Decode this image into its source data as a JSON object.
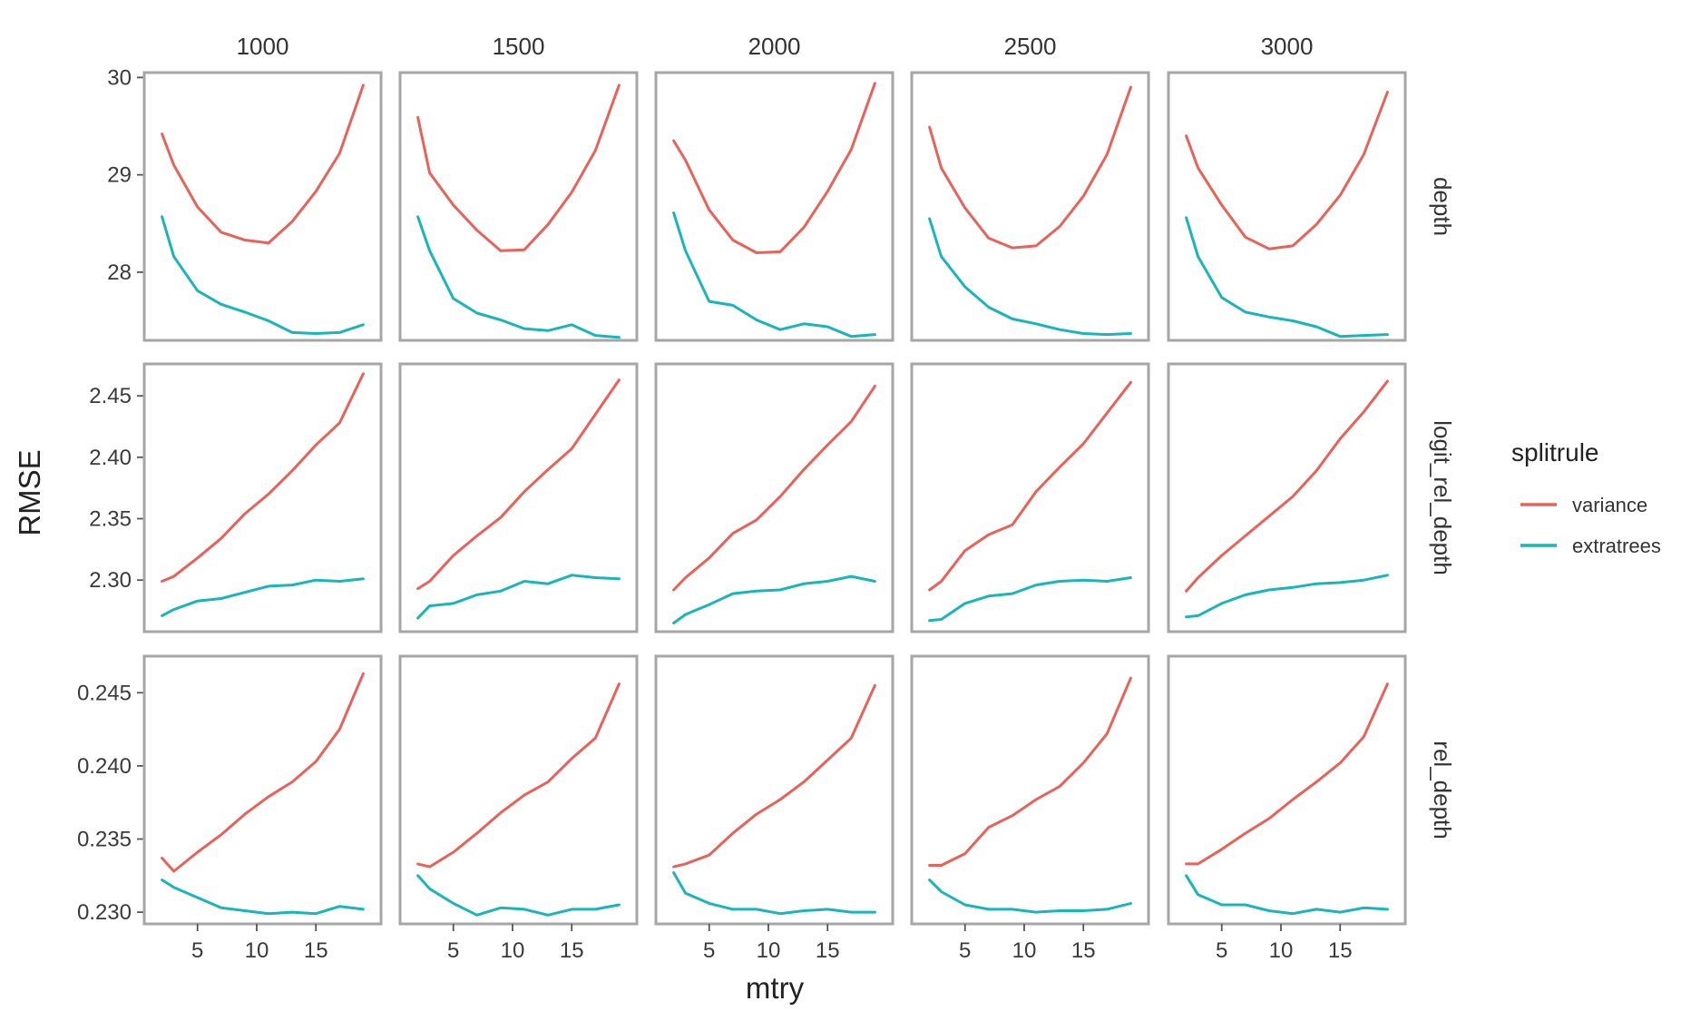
{
  "chart_data": {
    "type": "line",
    "xlabel": "mtry",
    "ylabel": "RMSE",
    "legend": {
      "title": "splitrule",
      "position": "right",
      "entries": [
        {
          "name": "variance",
          "color": "#E8625A"
        },
        {
          "name": "extratrees",
          "color": "#19B5B8"
        }
      ]
    },
    "columns": [
      "1000",
      "1500",
      "2000",
      "2500",
      "3000"
    ],
    "rows": [
      "depth",
      "logit_rel_depth",
      "rel_depth"
    ],
    "x": [
      2,
      3,
      5,
      7,
      9,
      11,
      13,
      15,
      17,
      19
    ],
    "xlim": [
      0.5,
      20.5
    ],
    "xticks": [
      5,
      10,
      15
    ],
    "row_scales": [
      {
        "ylim": [
          27.3,
          30.05
        ],
        "yticks": [
          28,
          29,
          30
        ],
        "ytick_labels": [
          "28",
          "29",
          "30"
        ]
      },
      {
        "ylim": [
          2.258,
          2.476
        ],
        "yticks": [
          2.3,
          2.35,
          2.4,
          2.45
        ],
        "ytick_labels": [
          "2.30",
          "2.35",
          "2.40",
          "2.45"
        ]
      },
      {
        "ylim": [
          0.2292,
          0.2475
        ],
        "yticks": [
          0.23,
          0.235,
          0.24,
          0.245
        ],
        "ytick_labels": [
          "0.230",
          "0.235",
          "0.240",
          "0.245"
        ]
      }
    ],
    "panels": [
      [
        {
          "variance": [
            29.42,
            29.1,
            28.67,
            28.41,
            28.33,
            28.3,
            28.52,
            28.83,
            29.22,
            29.92
          ],
          "extratrees": [
            28.57,
            28.16,
            27.81,
            27.67,
            27.59,
            27.5,
            27.38,
            27.37,
            27.38,
            27.46
          ]
        },
        {
          "variance": [
            29.59,
            29.02,
            28.69,
            28.43,
            28.22,
            28.23,
            28.49,
            28.82,
            29.25,
            29.92
          ],
          "extratrees": [
            28.57,
            28.22,
            27.73,
            27.58,
            27.51,
            27.42,
            27.4,
            27.46,
            27.35,
            27.33
          ]
        },
        {
          "variance": [
            29.35,
            29.15,
            28.64,
            28.33,
            28.2,
            28.21,
            28.46,
            28.83,
            29.26,
            29.94
          ],
          "extratrees": [
            28.61,
            28.22,
            27.7,
            27.66,
            27.51,
            27.41,
            27.47,
            27.44,
            27.34,
            27.36
          ]
        },
        {
          "variance": [
            29.49,
            29.07,
            28.66,
            28.35,
            28.25,
            28.27,
            28.47,
            28.78,
            29.21,
            29.9
          ],
          "extratrees": [
            28.55,
            28.16,
            27.85,
            27.64,
            27.52,
            27.47,
            27.41,
            27.37,
            27.36,
            27.37
          ]
        },
        {
          "variance": [
            29.4,
            29.07,
            28.69,
            28.36,
            28.24,
            28.27,
            28.49,
            28.79,
            29.21,
            29.85
          ],
          "extratrees": [
            28.56,
            28.16,
            27.74,
            27.59,
            27.54,
            27.5,
            27.44,
            27.34,
            27.35,
            27.36
          ]
        }
      ],
      [
        {
          "variance": [
            2.299,
            2.303,
            2.318,
            2.334,
            2.354,
            2.37,
            2.389,
            2.41,
            2.428,
            2.468
          ],
          "extratrees": [
            2.271,
            2.276,
            2.283,
            2.285,
            2.29,
            2.295,
            2.296,
            2.3,
            2.299,
            2.301
          ]
        },
        {
          "variance": [
            2.293,
            2.299,
            2.32,
            2.336,
            2.351,
            2.372,
            2.39,
            2.407,
            2.435,
            2.463
          ],
          "extratrees": [
            2.269,
            2.279,
            2.281,
            2.288,
            2.291,
            2.299,
            2.297,
            2.304,
            2.302,
            2.301
          ]
        },
        {
          "variance": [
            2.292,
            2.302,
            2.318,
            2.338,
            2.349,
            2.368,
            2.39,
            2.41,
            2.429,
            2.458
          ],
          "extratrees": [
            2.265,
            2.272,
            2.28,
            2.289,
            2.291,
            2.292,
            2.297,
            2.299,
            2.303,
            2.299
          ]
        },
        {
          "variance": [
            2.292,
            2.299,
            2.324,
            2.337,
            2.345,
            2.372,
            2.392,
            2.411,
            2.436,
            2.461
          ],
          "extratrees": [
            2.267,
            2.268,
            2.281,
            2.287,
            2.289,
            2.296,
            2.299,
            2.3,
            2.299,
            2.302
          ]
        },
        {
          "variance": [
            2.291,
            2.302,
            2.32,
            2.336,
            2.352,
            2.368,
            2.389,
            2.415,
            2.437,
            2.462
          ],
          "extratrees": [
            2.27,
            2.271,
            2.281,
            2.288,
            2.292,
            2.294,
            2.297,
            2.298,
            2.3,
            2.304
          ]
        }
      ],
      [
        {
          "variance": [
            0.2337,
            0.2328,
            0.2341,
            0.2353,
            0.2367,
            0.2379,
            0.2389,
            0.2403,
            0.2425,
            0.2463
          ],
          "extratrees": [
            0.2322,
            0.2317,
            0.231,
            0.2303,
            0.2301,
            0.2299,
            0.23,
            0.2299,
            0.2304,
            0.2302
          ]
        },
        {
          "variance": [
            0.2333,
            0.2331,
            0.2341,
            0.2354,
            0.2368,
            0.238,
            0.2389,
            0.2405,
            0.2419,
            0.2456
          ],
          "extratrees": [
            0.2325,
            0.2316,
            0.2306,
            0.2298,
            0.2303,
            0.2302,
            0.2298,
            0.2302,
            0.2302,
            0.2305
          ]
        },
        {
          "variance": [
            0.2331,
            0.2333,
            0.2339,
            0.2354,
            0.2367,
            0.2377,
            0.2389,
            0.2404,
            0.2419,
            0.2455
          ],
          "extratrees": [
            0.2327,
            0.2313,
            0.2306,
            0.2302,
            0.2302,
            0.2299,
            0.2301,
            0.2302,
            0.23,
            0.23
          ]
        },
        {
          "variance": [
            0.2332,
            0.2332,
            0.234,
            0.2358,
            0.2366,
            0.2377,
            0.2386,
            0.2402,
            0.2422,
            0.246
          ],
          "extratrees": [
            0.2322,
            0.2314,
            0.2305,
            0.2302,
            0.2302,
            0.23,
            0.2301,
            0.2301,
            0.2302,
            0.2306
          ]
        },
        {
          "variance": [
            0.2333,
            0.2333,
            0.2343,
            0.2354,
            0.2364,
            0.2377,
            0.2389,
            0.2402,
            0.242,
            0.2456
          ],
          "extratrees": [
            0.2325,
            0.2312,
            0.2305,
            0.2305,
            0.2301,
            0.2299,
            0.2302,
            0.23,
            0.2303,
            0.2302
          ]
        }
      ]
    ]
  }
}
